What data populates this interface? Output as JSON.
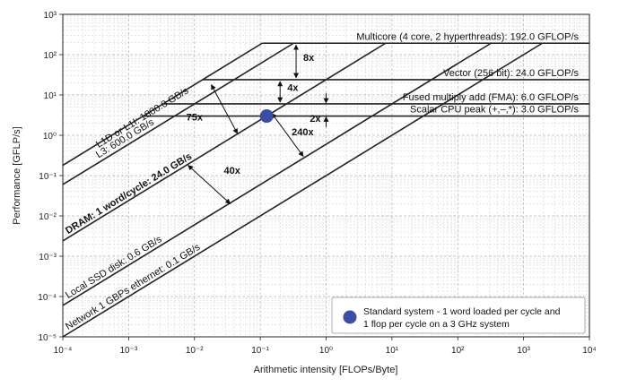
{
  "chart_data": {
    "type": "line",
    "xscale": "log",
    "yscale": "log",
    "xlim": [
      0.0001,
      10000
    ],
    "ylim": [
      1e-05,
      1000
    ],
    "xlabel": "Arithmetic intensity [FLOPs/Byte]",
    "ylabel": "Performance [GFLP/s]",
    "grid": true,
    "x_tick_labels": [
      "10⁻⁴",
      "10⁻³",
      "10⁻²",
      "10⁻¹",
      "10⁰",
      "10¹",
      "10²",
      "10³",
      "10⁴"
    ],
    "y_tick_labels": [
      "10⁻⁵",
      "10⁻⁴",
      "10⁻³",
      "10⁻²",
      "10⁻¹",
      "10⁰",
      "10¹",
      "10²",
      "10³"
    ],
    "compute_ceilings": [
      {
        "label": "Multicore (4 core, 2 hyperthreads): 192.0 GFLOP/s",
        "gflops": 192.0
      },
      {
        "label": "Vector (256 bit): 24.0 GFLOP/s",
        "gflops": 24.0
      },
      {
        "label": "Fused multiply add (FMA): 6.0 GFLOP/s",
        "gflops": 6.0
      },
      {
        "label": "Scalar CPU peak (+,–,*): 3.0 GFLOP/s",
        "gflops": 3.0
      }
    ],
    "bandwidth_roofs": [
      {
        "label": "L1D or L1I: 1800.0 GB/s",
        "gbs": 1800.0
      },
      {
        "label": "L3: 600.0 GB/s",
        "gbs": 600.0
      },
      {
        "label": "DRAM: 1 word/cycle: 24.0 GB/s",
        "gbs": 24.0
      },
      {
        "label": "Local SSD disk: 0.6 GB/s",
        "gbs": 0.6
      },
      {
        "label": "Network 1 GBPs ethernet: 0.1 GB/s",
        "gbs": 0.1
      }
    ],
    "annotations": [
      "8x",
      "4x",
      "2x",
      "75x",
      "240x",
      "40x"
    ],
    "point": {
      "x": 0.125,
      "y": 3.0,
      "color": "#3a4fa3"
    },
    "legend": {
      "position": "bottom-right",
      "text": [
        "Standard system - 1 word loaded per cycle and",
        "1 flop per cycle on a 3 GHz system"
      ]
    }
  }
}
